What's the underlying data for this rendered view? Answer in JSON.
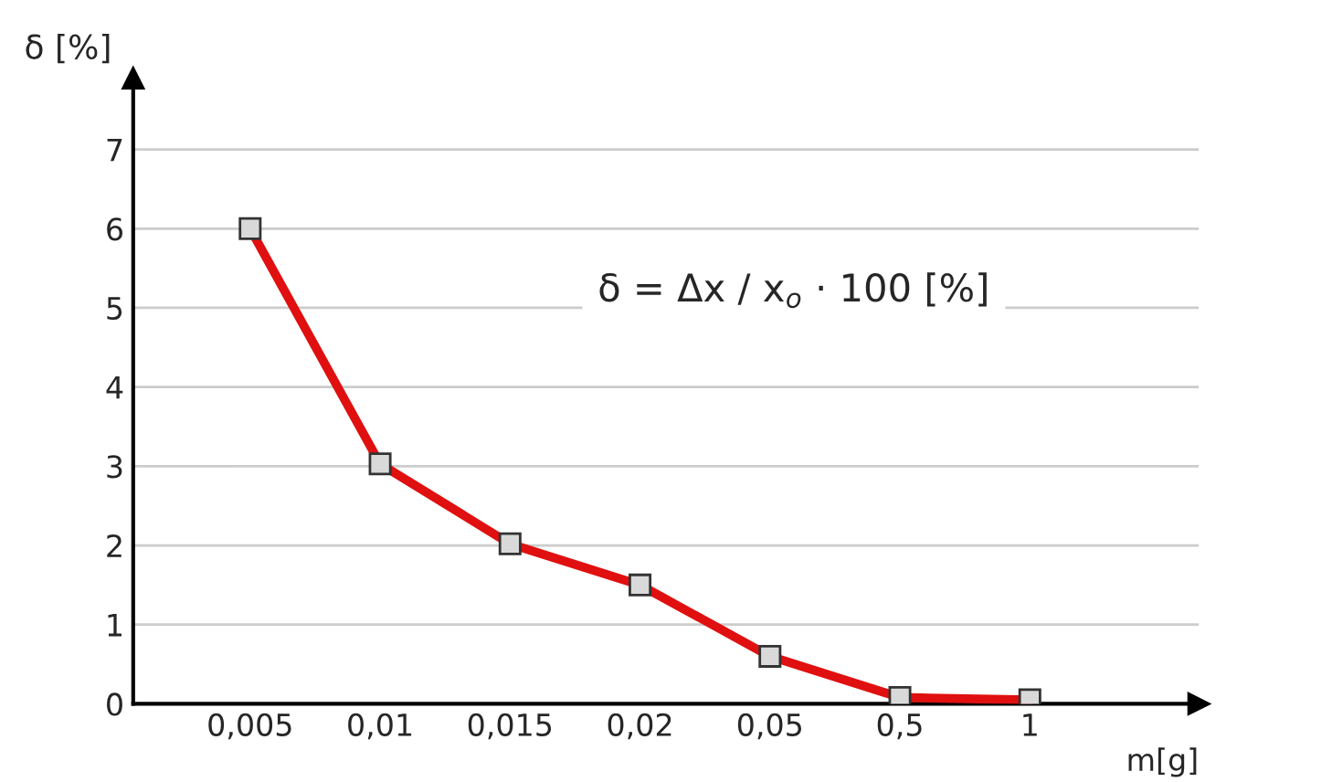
{
  "chart_data": {
    "type": "line",
    "categories": [
      "0,005",
      "0,01",
      "0,015",
      "0,02",
      "0,05",
      "0,5",
      "1"
    ],
    "series": [
      {
        "color": "#e01010",
        "values": [
          6.0,
          3.03,
          2.02,
          1.5,
          0.6,
          0.08,
          0.05
        ]
      }
    ],
    "xlabel": "m[g]",
    "ylabel": "δ [%]",
    "ylim": [
      0,
      7.9
    ],
    "yticks": [
      0,
      1,
      2,
      3,
      4,
      5,
      6,
      7
    ],
    "grid": "y",
    "marker": "square",
    "line_style": "solid",
    "legend": false,
    "annotations": [
      "δ = Δx / x$_{o}$ · 100 [%]"
    ]
  }
}
